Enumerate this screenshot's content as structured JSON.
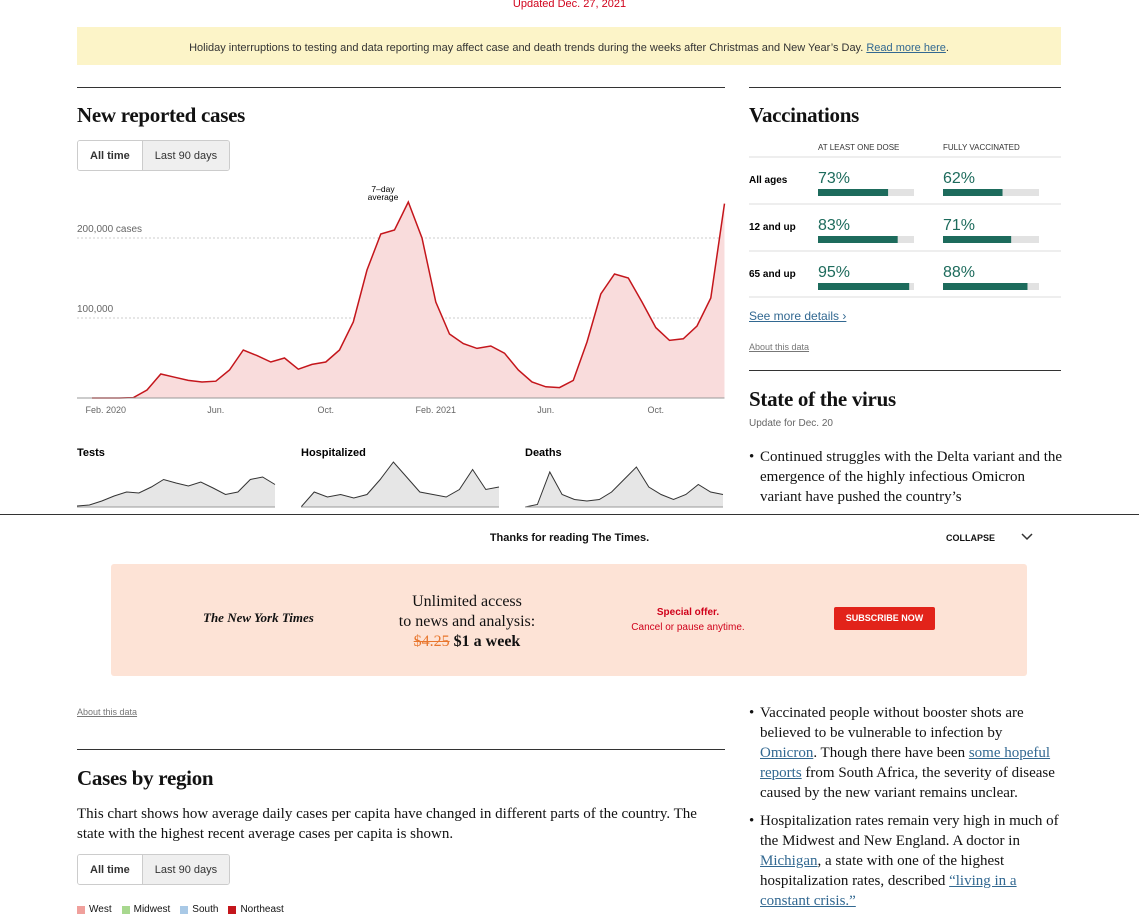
{
  "header": {
    "updated": "Updated Dec. 27, 2021"
  },
  "notice": {
    "text": "Holiday interruptions to testing and data reporting may affect case and death trends during the weeks after Christmas and New Year’s Day. ",
    "link": "Read more here",
    "end": "."
  },
  "cases": {
    "title": "New reported cases",
    "buttons": [
      "All time",
      "Last 90 days"
    ],
    "about": "About this data"
  },
  "chart_data": [
    {
      "type": "area",
      "annotation": [
        "7–day",
        "average"
      ],
      "color": "#c4161c",
      "fill": "#f9dcdc",
      "categories": [
        null,
        "Feb. 2020",
        null,
        null,
        null,
        null,
        null,
        null,
        null,
        "Jun.",
        null,
        null,
        null,
        null,
        null,
        null,
        null,
        "Oct.",
        null,
        null,
        null,
        null,
        null,
        null,
        null,
        "Feb. 2021",
        null,
        null,
        null,
        null,
        null,
        null,
        null,
        "Jun.",
        null,
        null,
        null,
        null,
        null,
        null,
        null,
        "Oct.",
        null,
        null,
        null,
        null,
        null
      ],
      "values": [
        0,
        0,
        0,
        500,
        10000,
        30000,
        26000,
        22000,
        20000,
        21000,
        35000,
        60000,
        53000,
        45000,
        50000,
        36000,
        42000,
        45000,
        60000,
        95000,
        160000,
        205000,
        210000,
        245000,
        200000,
        120000,
        80000,
        68000,
        62000,
        65000,
        56000,
        35000,
        20000,
        14000,
        13000,
        22000,
        70000,
        130000,
        155000,
        150000,
        120000,
        88000,
        72000,
        74000,
        90000,
        125000,
        243000
      ],
      "ylim": [
        0,
        260000
      ],
      "yticks": [
        {
          "value": 100000,
          "label": "100,000"
        },
        {
          "value": 200000,
          "label": "200,000 cases"
        }
      ],
      "grid": true
    },
    {
      "type": "area",
      "title": "Tests",
      "color": "#333333",
      "fill": "#e6e6e6",
      "values": [
        2,
        4,
        12,
        22,
        30,
        28,
        40,
        55,
        48,
        42,
        50,
        38,
        25,
        30,
        55,
        60,
        45
      ],
      "ylim": [
        0,
        100
      ]
    },
    {
      "type": "area",
      "title": "Hospitalized",
      "color": "#333333",
      "fill": "#e6e6e6",
      "values": [
        0,
        30,
        20,
        25,
        18,
        25,
        55,
        90,
        60,
        30,
        25,
        20,
        35,
        75,
        35,
        40
      ],
      "ylim": [
        0,
        100
      ]
    },
    {
      "type": "area",
      "title": "Deaths",
      "color": "#333333",
      "fill": "#e6e6e6",
      "values": [
        0,
        5,
        70,
        25,
        15,
        12,
        15,
        30,
        55,
        80,
        40,
        25,
        15,
        25,
        45,
        30,
        25
      ],
      "ylim": [
        0,
        100
      ]
    }
  ],
  "vaccinations": {
    "title": "Vaccinations",
    "columns": [
      "AT LEAST ONE DOSE",
      "FULLY VACCINATED"
    ],
    "xlim": [
      0,
      100
    ],
    "rows": [
      {
        "label": "All ages",
        "values": [
          73,
          62
        ],
        "value_labels": [
          "73%",
          "62%"
        ]
      },
      {
        "label": "12 and up",
        "values": [
          83,
          71
        ],
        "value_labels": [
          "83%",
          "71%"
        ]
      },
      {
        "label": "65 and up",
        "values": [
          95,
          88
        ],
        "value_labels": [
          "95%",
          "88%"
        ]
      }
    ],
    "more": "See more details ›",
    "about": "About this data"
  },
  "virus": {
    "title": "State of the virus",
    "updated": "Update for Dec. 20",
    "bullets": [
      [
        {
          "text": "Continued struggles with the Delta variant and the emergence of the highly infectious Omicron variant have pushed the country’s"
        }
      ],
      [
        {
          "text": "Vaccinated people without booster shots are believed to be vulnerable to infection by "
        },
        {
          "text": "Omicron",
          "link": true
        },
        {
          "text": ". Though there have been "
        },
        {
          "text": "some hopeful reports",
          "link": true
        },
        {
          "text": " from South Africa, the severity of disease caused by the new variant remains unclear."
        }
      ],
      [
        {
          "text": "Hospitalization rates remain very high in much of the Midwest and New England. A doctor in "
        },
        {
          "text": "Michigan",
          "link": true
        },
        {
          "text": ", a state with one of the highest hospitalization rates, described "
        },
        {
          "text": "“living in a constant crisis.”",
          "link": true
        }
      ]
    ]
  },
  "paywall": {
    "thanks": "Thanks for reading The Times.",
    "collapse": "COLLAPSE",
    "logo": "The New York Times",
    "headline": [
      "Unlimited access",
      "to news and analysis:"
    ],
    "old_price": "$4.25",
    "price": "$1 a week",
    "offer": "Special offer.",
    "cancel": "Cancel or pause anytime.",
    "button": "SUBSCRIBE NOW"
  },
  "region": {
    "title": "Cases by region",
    "description": "This chart shows how average daily cases per capita have changed in different parts of the country. The state with the highest recent average cases per capita is shown.",
    "buttons": [
      "All time",
      "Last 90 days"
    ],
    "legend": [
      {
        "name": "West",
        "color": "#f0a09c"
      },
      {
        "name": "Midwest",
        "color": "#a8d88f"
      },
      {
        "name": "South",
        "color": "#a9c9e6"
      },
      {
        "name": "Northeast",
        "color": "#c4161c"
      }
    ]
  }
}
